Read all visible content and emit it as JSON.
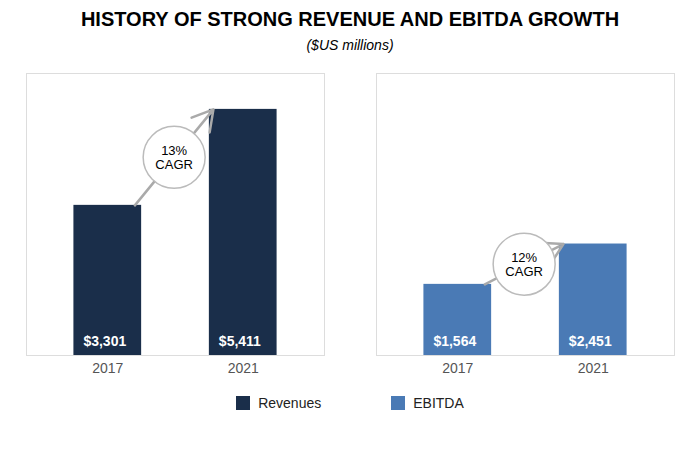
{
  "title": "HISTORY OF STRONG REVENUE AND EBITDA GROWTH",
  "subtitle": "($US millions)",
  "legend": "bottom",
  "chart_data": [
    {
      "type": "bar",
      "categories": [
        "2017",
        "2021"
      ],
      "series": [
        {
          "name": "Revenues",
          "color": "#1a2e4a",
          "values": [
            3301,
            5411
          ],
          "value_labels": [
            "$3,301",
            "$5,411"
          ]
        }
      ],
      "ylim": [
        0,
        6200
      ],
      "data_labels": true,
      "tick_labels": "x",
      "grid": false,
      "annotations": [
        "13%\nCAGR"
      ]
    },
    {
      "type": "bar",
      "categories": [
        "2017",
        "2021"
      ],
      "series": [
        {
          "name": "EBITDA",
          "color": "#4a7ab5",
          "values": [
            1564,
            2451
          ],
          "value_labels": [
            "$1,564",
            "$2,451"
          ]
        }
      ],
      "ylim": [
        0,
        6200
      ],
      "data_labels": true,
      "tick_labels": "x",
      "grid": false,
      "annotations": [
        "12%\nCAGR"
      ]
    }
  ]
}
